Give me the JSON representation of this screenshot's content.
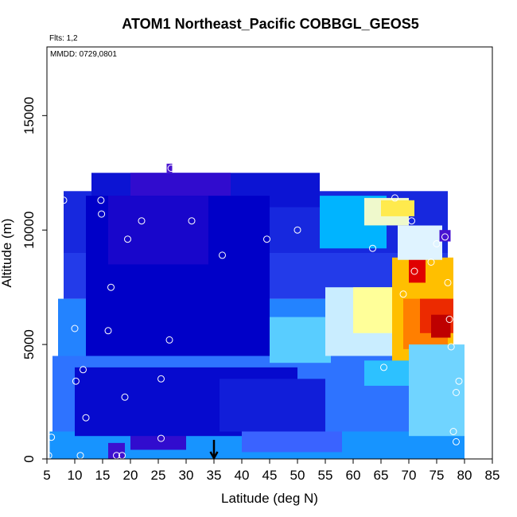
{
  "chart_data": {
    "type": "heatmap",
    "title": "ATOM1 Northeast_Pacific COBBGL_GEOS5",
    "annotations": {
      "flights": "Flts: 1,2",
      "mmdd": "MMDD: 0729,0801"
    },
    "xlabel": "Latitude (deg N)",
    "ylabel": "Altitude (m)",
    "xlim": [
      5,
      85
    ],
    "ylim": [
      0,
      18000
    ],
    "x_ticks": [
      "5",
      "10",
      "15",
      "20",
      "25",
      "30",
      "35",
      "40",
      "45",
      "50",
      "55",
      "60",
      "65",
      "70",
      "75",
      "80",
      "85"
    ],
    "y_ticks": [
      "0",
      "5000",
      "10000",
      "15000"
    ],
    "x_tick_values": [
      5,
      10,
      15,
      20,
      25,
      30,
      35,
      40,
      45,
      50,
      55,
      60,
      65,
      70,
      75,
      80,
      85
    ],
    "y_tick_values": [
      0,
      5000,
      10000,
      15000
    ],
    "marker_latitude": 35,
    "color_scale": [
      "#7a1fd6",
      "#0000c8",
      "#3a63ff",
      "#00b4ff",
      "#dff3ff",
      "#ffff99",
      "#ffd400",
      "#ff6a00",
      "#e00000",
      "#a80000"
    ],
    "regions": [
      {
        "x": [
          6,
          80
        ],
        "y": [
          800,
          4500
        ],
        "v": 2.2
      },
      {
        "x": [
          5.5,
          80
        ],
        "y": [
          0,
          1200
        ],
        "v": 2.6
      },
      {
        "x": [
          7,
          78
        ],
        "y": [
          4500,
          7000
        ],
        "v": 2.4
      },
      {
        "x": [
          8,
          77
        ],
        "y": [
          7000,
          9000
        ],
        "v": 1.6
      },
      {
        "x": [
          8,
          77
        ],
        "y": [
          9000,
          11700
        ],
        "v": 1.4
      },
      {
        "x": [
          13,
          54
        ],
        "y": [
          11000,
          12500
        ],
        "v": 1.2
      },
      {
        "x": [
          20,
          38
        ],
        "y": [
          11500,
          12500
        ],
        "v": 0.6
      },
      {
        "x": [
          26.5,
          27.5
        ],
        "y": [
          12500,
          12900
        ],
        "v": 0.4
      },
      {
        "x": [
          16,
          19
        ],
        "y": [
          0,
          700
        ],
        "v": 0.5
      },
      {
        "x": [
          20,
          30
        ],
        "y": [
          400,
          1200
        ],
        "v": 0.6
      },
      {
        "x": [
          10,
          50
        ],
        "y": [
          1000,
          4000
        ],
        "v": 1.1
      },
      {
        "x": [
          12,
          45
        ],
        "y": [
          4500,
          11500
        ],
        "v": 1.0
      },
      {
        "x": [
          16,
          34
        ],
        "y": [
          8500,
          11500
        ],
        "v": 0.8
      },
      {
        "x": [
          36,
          55
        ],
        "y": [
          1200,
          3500
        ],
        "v": 1.3
      },
      {
        "x": [
          40,
          58
        ],
        "y": [
          300,
          1200
        ],
        "v": 2.0
      },
      {
        "x": [
          45,
          56
        ],
        "y": [
          4200,
          6200
        ],
        "v": 3.4
      },
      {
        "x": [
          55,
          68
        ],
        "y": [
          4500,
          7500
        ],
        "v": 3.9
      },
      {
        "x": [
          54,
          66
        ],
        "y": [
          9200,
          11500
        ],
        "v": 3.0
      },
      {
        "x": [
          62,
          70
        ],
        "y": [
          10200,
          11400
        ],
        "v": 4.5
      },
      {
        "x": [
          65,
          71
        ],
        "y": [
          10600,
          11300
        ],
        "v": 5.5
      },
      {
        "x": [
          60,
          68
        ],
        "y": [
          5500,
          7500
        ],
        "v": 5.0
      },
      {
        "x": [
          67,
          78
        ],
        "y": [
          4200,
          8800
        ],
        "v": 6.2
      },
      {
        "x": [
          69,
          77
        ],
        "y": [
          4800,
          7000
        ],
        "v": 6.8
      },
      {
        "x": [
          72,
          78
        ],
        "y": [
          5500,
          7000
        ],
        "v": 7.6
      },
      {
        "x": [
          74,
          77.5
        ],
        "y": [
          5300,
          6300
        ],
        "v": 8.6
      },
      {
        "x": [
          70,
          73
        ],
        "y": [
          7700,
          8700
        ],
        "v": 8.0
      },
      {
        "x": [
          68,
          76
        ],
        "y": [
          8700,
          10200
        ],
        "v": 4.0
      },
      {
        "x": [
          75.5,
          77.5
        ],
        "y": [
          9500,
          10000
        ],
        "v": 0.4
      },
      {
        "x": [
          62,
          78
        ],
        "y": [
          3200,
          4300
        ],
        "v": 3.2
      },
      {
        "x": [
          70,
          80
        ],
        "y": [
          1000,
          5000
        ],
        "v": 3.5
      }
    ],
    "flight_points": [
      [
        5.3,
        150
      ],
      [
        5.5,
        4800
      ],
      [
        5.8,
        950
      ],
      [
        8,
        11300
      ],
      [
        10,
        5700
      ],
      [
        10.2,
        3400
      ],
      [
        11,
        150
      ],
      [
        11.5,
        3900
      ],
      [
        12,
        1800
      ],
      [
        14.7,
        11300
      ],
      [
        14.8,
        10700
      ],
      [
        16,
        5600
      ],
      [
        16.5,
        7500
      ],
      [
        17.5,
        150
      ],
      [
        18.5,
        150
      ],
      [
        19,
        2700
      ],
      [
        19.5,
        9600
      ],
      [
        22,
        10400
      ],
      [
        25.5,
        900
      ],
      [
        25.5,
        3500
      ],
      [
        27,
        5200
      ],
      [
        27.3,
        12700
      ],
      [
        31,
        10400
      ],
      [
        36.5,
        8900
      ],
      [
        44.5,
        9600
      ],
      [
        50,
        10000
      ],
      [
        63.5,
        9200
      ],
      [
        65.5,
        4000
      ],
      [
        67.5,
        11400
      ],
      [
        69,
        7200
      ],
      [
        70.5,
        10400
      ],
      [
        71,
        8200
      ],
      [
        74,
        8600
      ],
      [
        75,
        9400
      ],
      [
        76.5,
        9700
      ],
      [
        77,
        7700
      ],
      [
        77.3,
        6100
      ],
      [
        77.6,
        4900
      ],
      [
        78,
        1200
      ],
      [
        78.5,
        750
      ],
      [
        78.5,
        2900
      ],
      [
        79,
        3400
      ],
      [
        79.3,
        5600
      ]
    ]
  }
}
